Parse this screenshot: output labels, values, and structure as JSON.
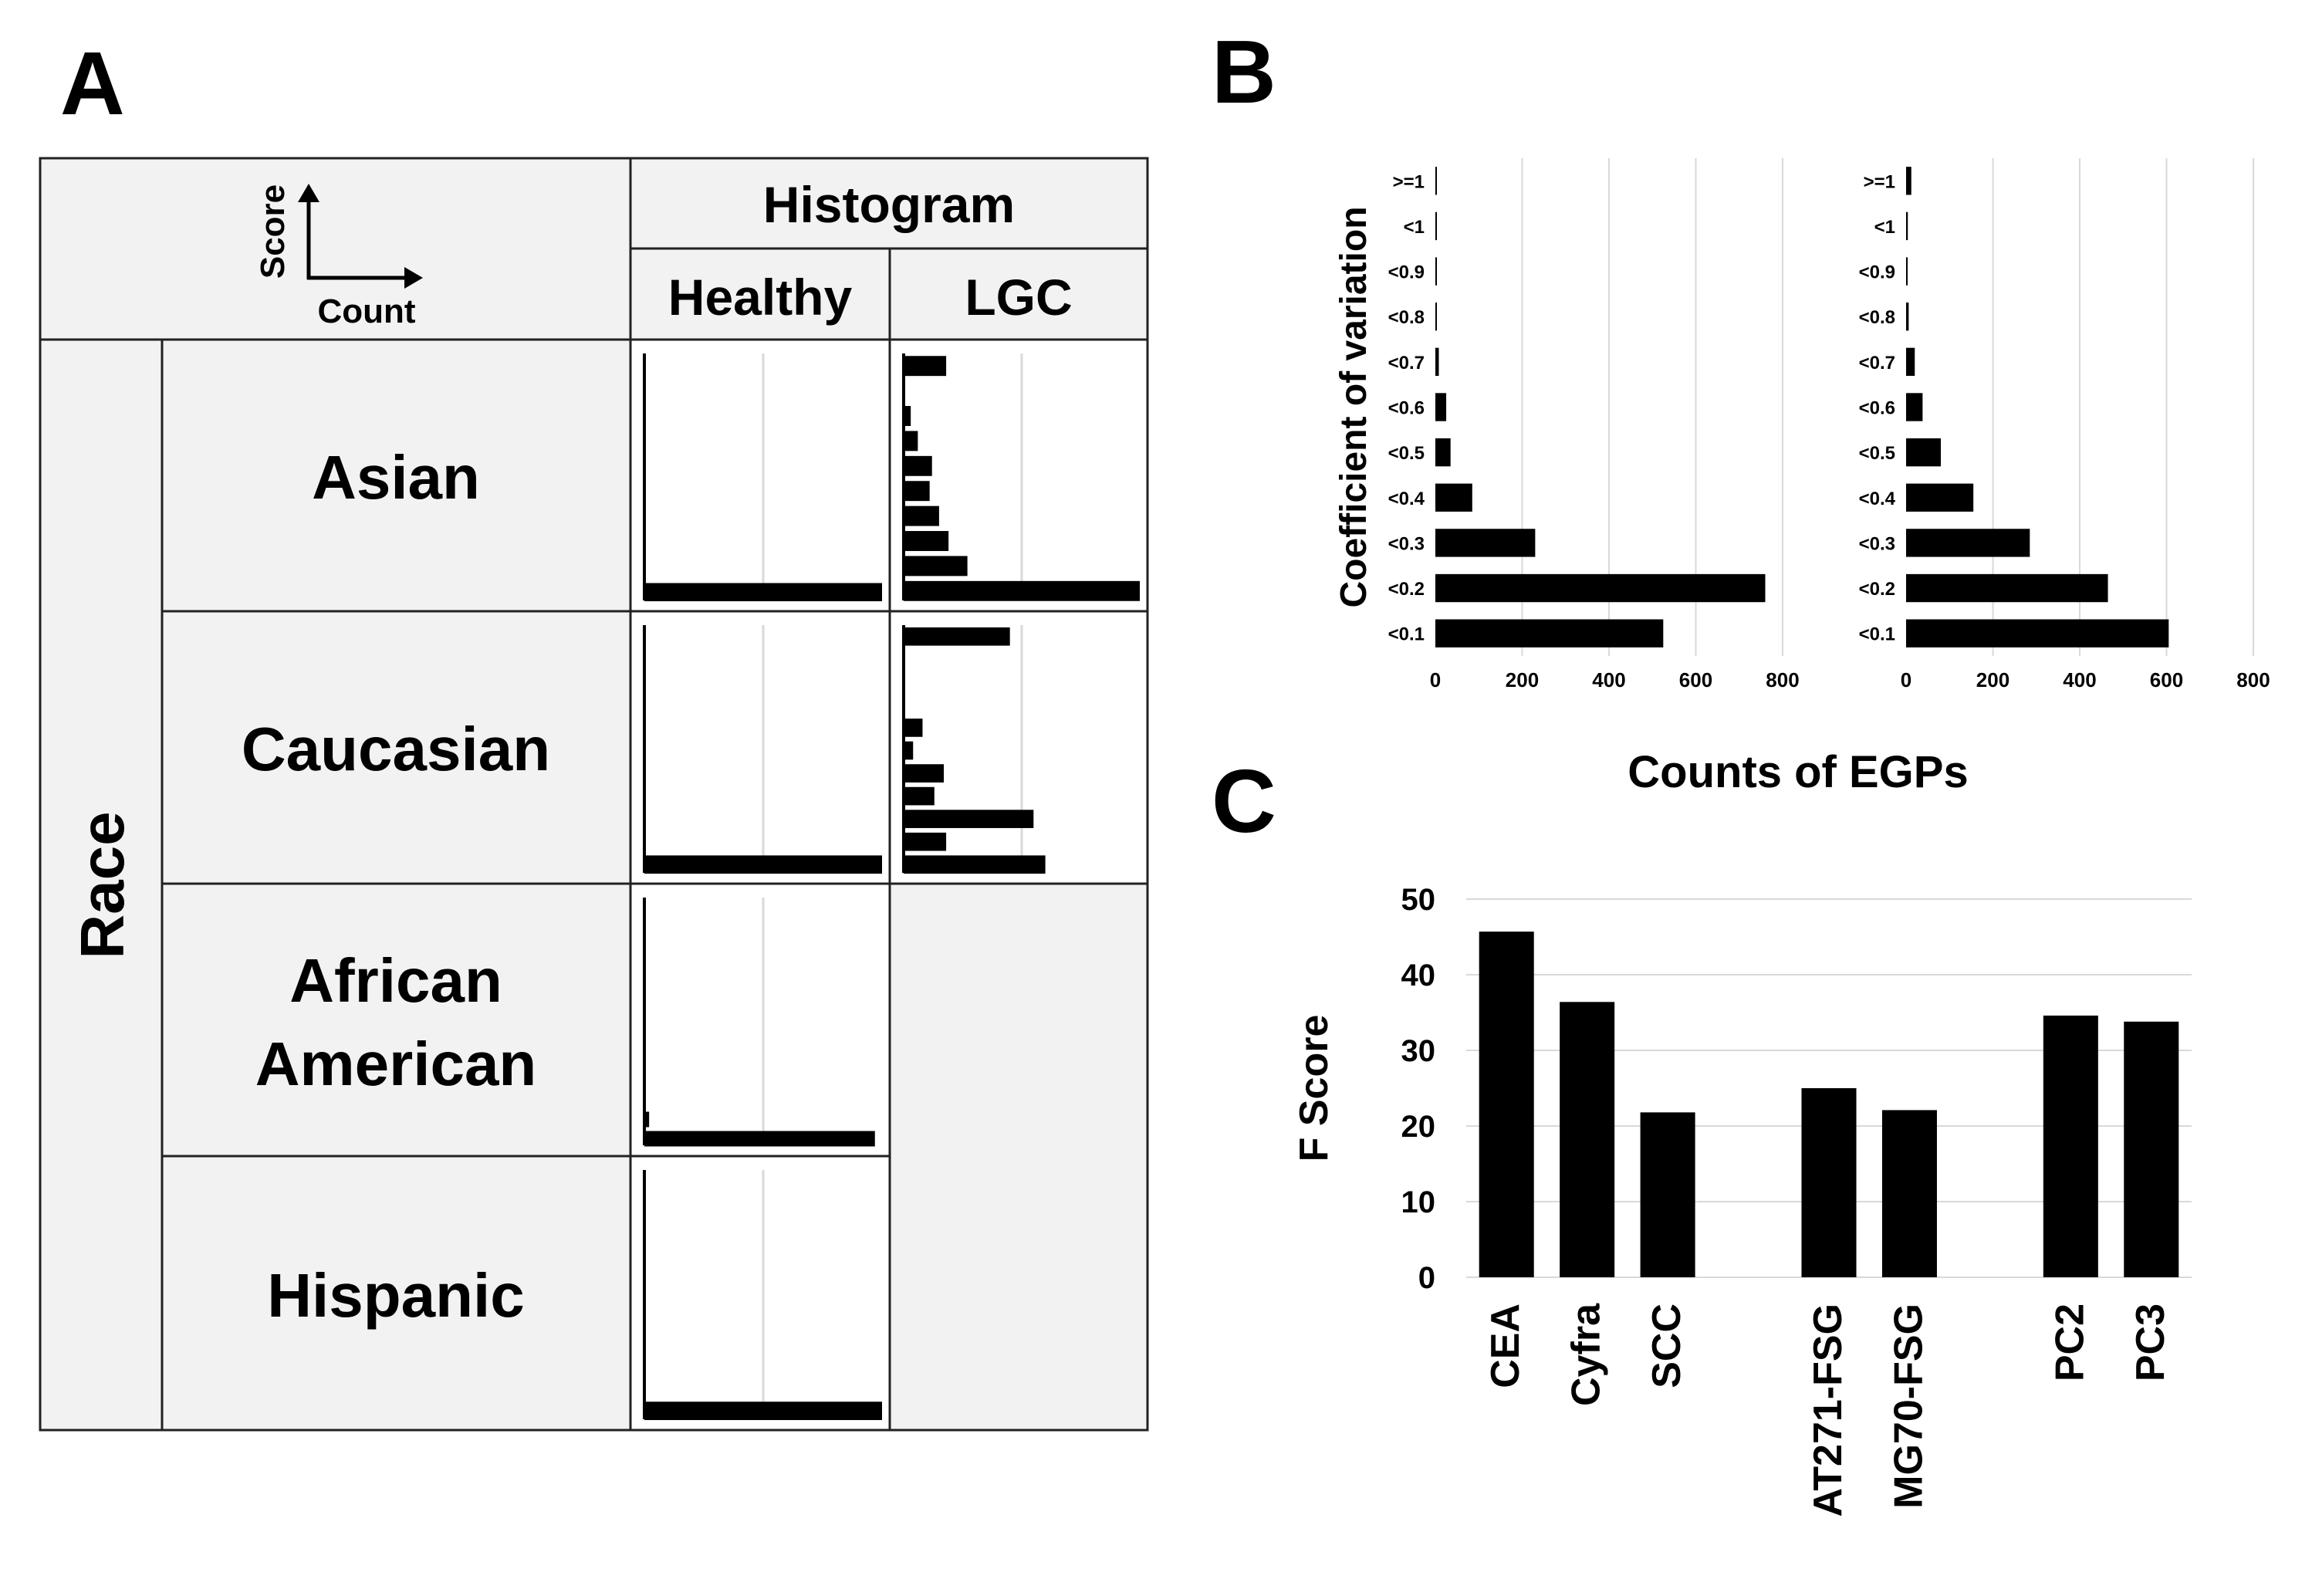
{
  "panels": {
    "a": "A",
    "b": "B",
    "c": "C"
  },
  "table": {
    "histogram_header": "Histogram",
    "col_healthy": "Healthy",
    "col_lgc": "LGC",
    "row_group": "Race",
    "axis_legend": {
      "y": "Score",
      "x": "Count"
    },
    "rows": [
      {
        "label_lines": [
          "Asian"
        ],
        "healthy": [
          0,
          0,
          0,
          0,
          0,
          0,
          0,
          0,
          0,
          0,
          1.0
        ],
        "lgc": [
          0.18,
          0,
          0.03,
          0.06,
          0.12,
          0.11,
          0.15,
          0.19,
          0.27,
          1.0
        ]
      },
      {
        "label_lines": [
          "Caucasian"
        ],
        "healthy": [
          0,
          0,
          0,
          0,
          0,
          0,
          0,
          0,
          0,
          0,
          1.0
        ],
        "lgc": [
          0.45,
          0,
          0,
          0,
          0.08,
          0.04,
          0.17,
          0.13,
          0.55,
          0.18,
          0.6
        ]
      },
      {
        "label_lines": [
          "African",
          "American"
        ],
        "healthy": [
          0,
          0,
          0,
          0,
          0,
          0,
          0,
          0,
          0,
          0,
          0,
          0.02,
          0.97
        ]
      },
      {
        "label_lines": [
          "Hispanic"
        ],
        "healthy": [
          0,
          0,
          0,
          0,
          0,
          0,
          0,
          0,
          0,
          0,
          1.0
        ]
      }
    ]
  },
  "chart_data": [
    {
      "panel": "B-left",
      "type": "bar",
      "orientation": "horizontal",
      "categories": [
        ">=1",
        "<1",
        "<0.9",
        "<0.8",
        "<0.7",
        "<0.6",
        "<0.5",
        "<0.4",
        "<0.3",
        "<0.2",
        "<0.1"
      ],
      "values": [
        3,
        3,
        3,
        3,
        8,
        25,
        35,
        85,
        230,
        760,
        525
      ],
      "xlim": [
        0,
        800
      ],
      "xticks": [
        "0",
        "200",
        "400",
        "600",
        "800"
      ],
      "ylabel": "Coefficient of variation",
      "shared_xlabel": "Counts of EGPs"
    },
    {
      "panel": "B-right",
      "type": "bar",
      "orientation": "horizontal",
      "categories": [
        ">=1",
        "<1",
        "<0.9",
        "<0.8",
        "<0.7",
        "<0.6",
        "<0.5",
        "<0.4",
        "<0.3",
        "<0.2",
        "<0.1"
      ],
      "values": [
        12,
        4,
        2,
        6,
        20,
        38,
        80,
        155,
        285,
        465,
        605
      ],
      "xlim": [
        0,
        800
      ],
      "xticks": [
        "0",
        "200",
        "400",
        "600",
        "800"
      ]
    },
    {
      "panel": "C",
      "type": "bar",
      "categories": [
        "CEA",
        "Cyfra",
        "SCC",
        "",
        "AT271-FSG",
        "MG70-FSG",
        "",
        "PC2",
        "PC3"
      ],
      "values": [
        45.7,
        36.4,
        21.8,
        null,
        25,
        22.1,
        null,
        34.6,
        33.8
      ],
      "ylim": [
        0,
        50
      ],
      "yticks": [
        "0",
        "10",
        "20",
        "30",
        "40",
        "50"
      ],
      "ylabel": "F Score"
    }
  ]
}
